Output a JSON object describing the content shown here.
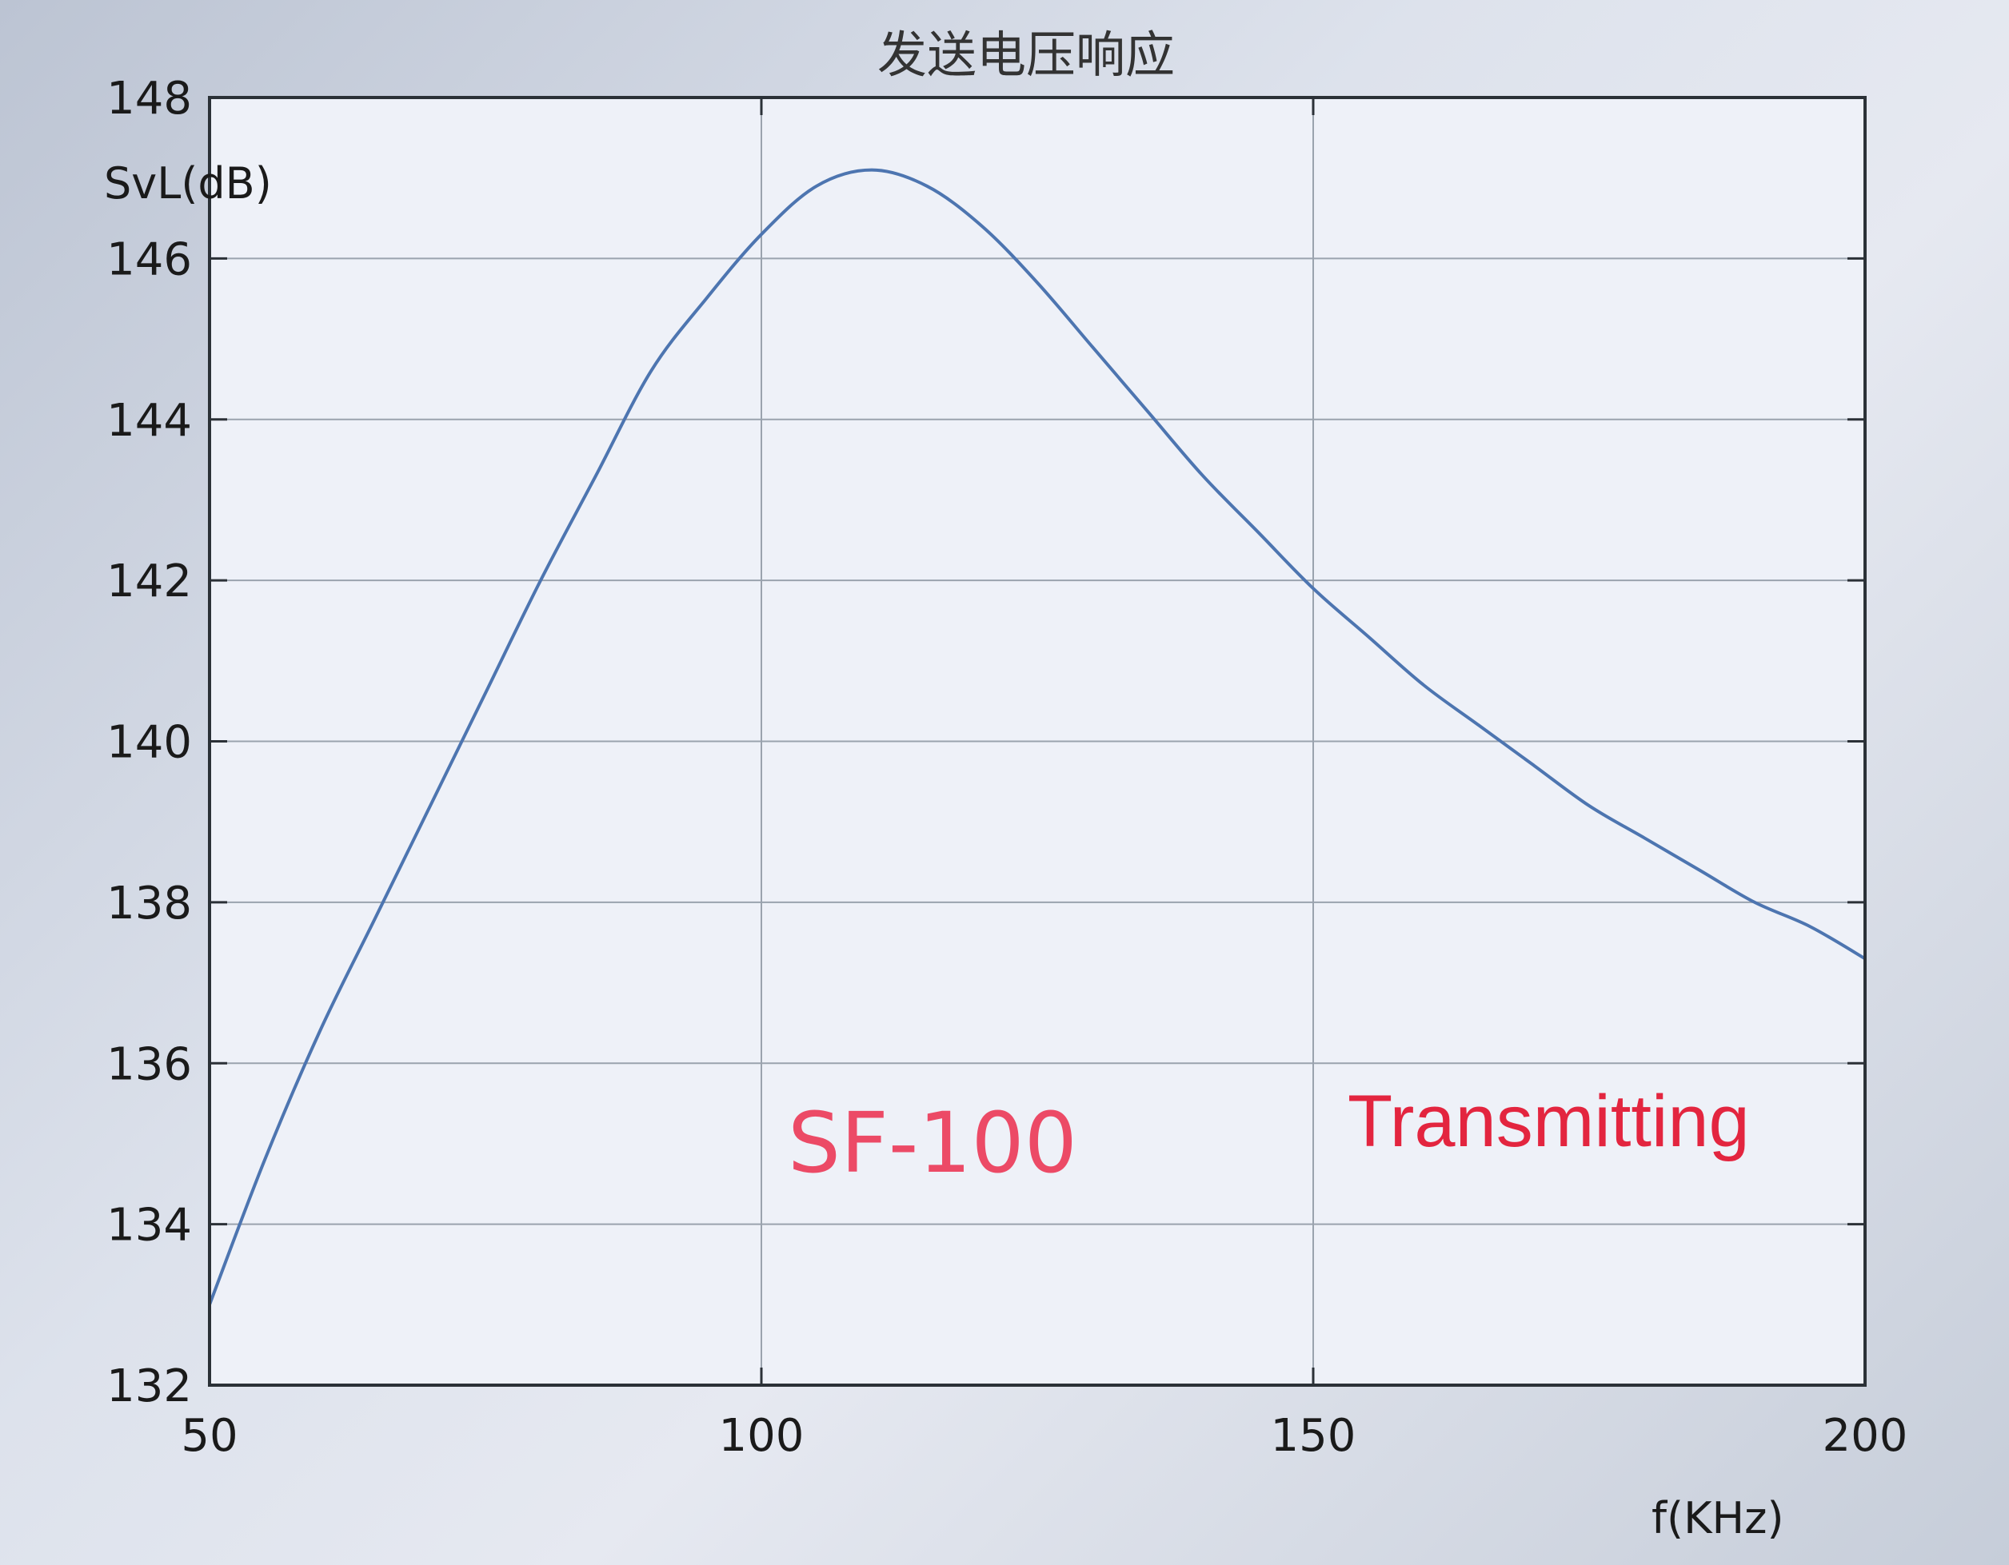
{
  "chart_data": {
    "type": "line",
    "title": "发送电压响应",
    "xlabel": "f(KHz)",
    "ylabel": "SvL(dB)",
    "xlim": [
      50,
      200
    ],
    "ylim": [
      132,
      148
    ],
    "x_ticks": [
      "50",
      "100",
      "150",
      "200"
    ],
    "y_ticks": [
      "132",
      "134",
      "136",
      "138",
      "140",
      "142",
      "144",
      "146",
      "148"
    ],
    "grid": true,
    "series": [
      {
        "color": "#4d75b0",
        "x": [
          50,
          55,
          60,
          65,
          70,
          75,
          80,
          85,
          90,
          95,
          100,
          105,
          110,
          115,
          120,
          125,
          130,
          135,
          140,
          145,
          150,
          155,
          160,
          165,
          170,
          175,
          180,
          185,
          190,
          195,
          200
        ],
        "y": [
          133.0,
          134.8,
          136.4,
          137.8,
          139.2,
          140.6,
          142.0,
          143.3,
          144.6,
          145.5,
          146.3,
          146.9,
          147.1,
          146.9,
          146.4,
          145.7,
          144.9,
          144.1,
          143.3,
          142.6,
          141.9,
          141.3,
          140.7,
          140.2,
          139.7,
          139.2,
          138.8,
          138.4,
          138.0,
          137.7,
          137.3
        ]
      }
    ],
    "annotations": [
      "SF-100",
      "Transmitting"
    ]
  }
}
